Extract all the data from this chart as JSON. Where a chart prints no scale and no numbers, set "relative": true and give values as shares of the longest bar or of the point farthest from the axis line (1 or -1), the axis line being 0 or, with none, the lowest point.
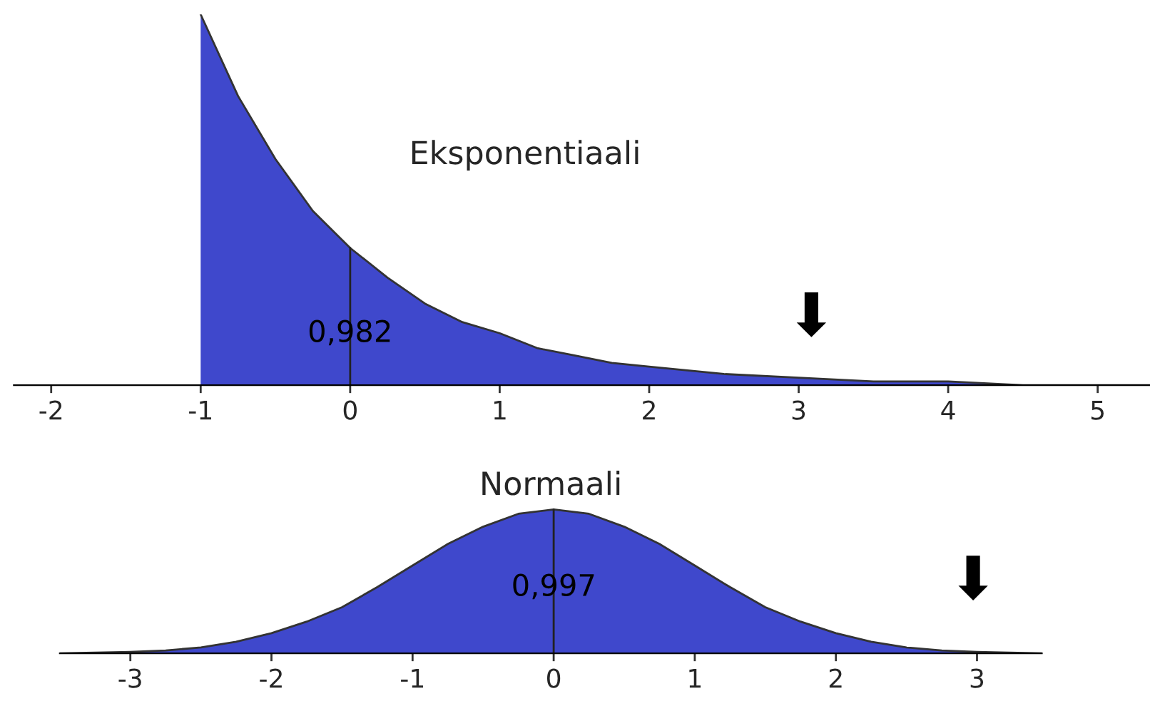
{
  "chart_data": [
    {
      "type": "area",
      "title": "Eksponentiaali",
      "relative": true,
      "xlim": [
        -2.25,
        5.35
      ],
      "xticks": [
        -2,
        -1,
        0,
        1,
        2,
        3,
        4,
        5
      ],
      "series": [
        {
          "color": "#3f48cc",
          "x": [
            -1,
            -0.75,
            -0.5,
            -0.25,
            0,
            0.25,
            0.5,
            0.75,
            1,
            1.25,
            1.5,
            1.75,
            2,
            2.5,
            3,
            3.5,
            4,
            4.5,
            5,
            5.35
          ],
          "values": [
            1,
            0.78,
            0.61,
            0.47,
            0.37,
            0.29,
            0.22,
            0.17,
            0.14,
            0.1,
            0.08,
            0.06,
            0.05,
            0.03,
            0.02,
            0.01,
            0.01,
            0.0,
            0.0,
            0.0
          ]
        }
      ],
      "ref_lines": [
        {
          "axis": "x",
          "value": 0
        }
      ],
      "annotations": [
        "0,982",
        "⬇"
      ]
    },
    {
      "type": "area",
      "title": "Normaali",
      "relative": true,
      "xlim": [
        -3.5,
        3.46
      ],
      "xticks": [
        -3,
        -2,
        -1,
        0,
        1,
        2,
        3
      ],
      "series": [
        {
          "color": "#3f48cc",
          "x": [
            -3.5,
            -3,
            -2.75,
            -2.5,
            -2.25,
            -2,
            -1.75,
            -1.5,
            -1.25,
            -1,
            -0.75,
            -0.5,
            -0.25,
            0,
            0.25,
            0.5,
            0.75,
            1,
            1.25,
            1.5,
            1.75,
            2,
            2.25,
            2.5,
            2.75,
            3,
            3.46
          ],
          "values": [
            0.0,
            0.01,
            0.02,
            0.04,
            0.08,
            0.14,
            0.22,
            0.32,
            0.46,
            0.61,
            0.76,
            0.88,
            0.97,
            1,
            0.97,
            0.88,
            0.76,
            0.61,
            0.46,
            0.32,
            0.22,
            0.14,
            0.08,
            0.04,
            0.02,
            0.01,
            0.0
          ]
        }
      ],
      "ref_lines": [
        {
          "axis": "x",
          "value": 0
        }
      ],
      "annotations": [
        "0,997",
        "⬇"
      ]
    }
  ]
}
